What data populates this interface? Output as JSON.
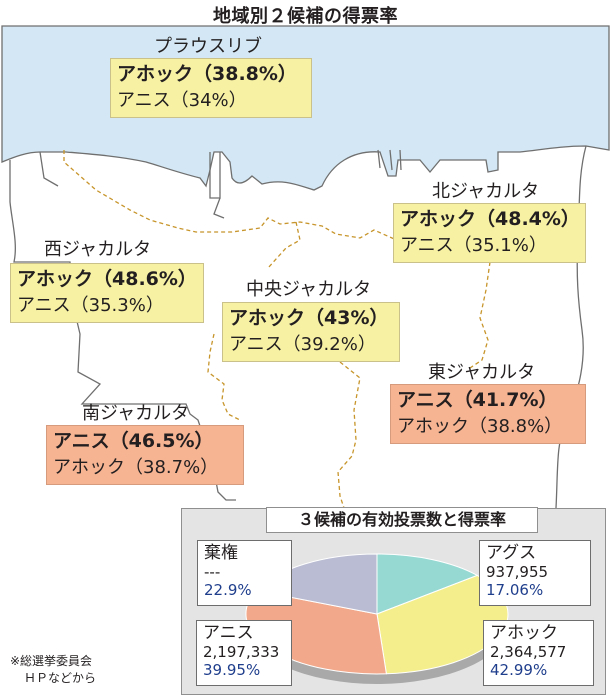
{
  "title": "地域別２候補の得票率",
  "colors": {
    "sea": "#d3e8f4",
    "leader_yellow": "#f6f1a3",
    "leader_salmon": "#f6b493",
    "boundary": "#c7952b",
    "pie_ahok": "#f4ee8c",
    "pie_anies": "#f2a98b",
    "pie_agus": "#96d9d3",
    "pie_blank": "#b9bcd2"
  },
  "regions": {
    "north_seas": {
      "name": "プラウスリブ",
      "line1": "アホック（38.8%）",
      "line2": "アニス（34%）"
    },
    "north": {
      "name": "北ジャカルタ",
      "line1": "アホック（48.4%）",
      "line2": "アニス（35.1%）"
    },
    "west": {
      "name": "西ジャカルタ",
      "line1": "アホック（48.6%）",
      "line2": "アニス（35.3%）"
    },
    "central": {
      "name": "中央ジャカルタ",
      "line1": "アホック（43%）",
      "line2": "アニス（39.2%）"
    },
    "east": {
      "name": "東ジャカルタ",
      "line1": "アニス（41.7%）",
      "line2": "アホック（38.8%）"
    },
    "south": {
      "name": "南ジャカルタ",
      "line1": "アニス（46.5%）",
      "line2": "アホック（38.7%）"
    }
  },
  "summary": {
    "title": "３候補の有効投票数と得票率",
    "blank": {
      "name": "棄権",
      "votes": "---",
      "pct": "22.9%"
    },
    "agus": {
      "name": "アグス",
      "votes": "937,955",
      "pct": "17.06%"
    },
    "anies": {
      "name": "アニス",
      "votes": "2,197,333",
      "pct": "39.95%"
    },
    "ahok": {
      "name": "アホック",
      "votes": "2,364,577",
      "pct": "42.99%"
    }
  },
  "pie_shares": {
    "ahok": 42.99,
    "anies": 39.95,
    "agus": 17.06,
    "blank": 22.9
  },
  "note": {
    "line1": "※総選挙委員会",
    "line2": "ＨＰなどから"
  }
}
